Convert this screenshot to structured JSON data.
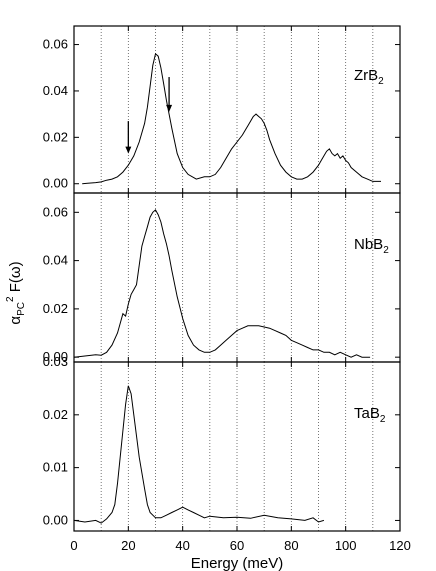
{
  "chart_data": {
    "type": "line",
    "xlabel": "Energy (meV)",
    "ylabel": {
      "base": "α",
      "sub": "PC",
      "sup": "2",
      "rest": " F(ω)"
    },
    "xlim": [
      0,
      120
    ],
    "x_ticks": [
      0,
      20,
      40,
      60,
      80,
      100,
      120
    ],
    "vertical_dotted_gridlines_x": [
      10,
      20,
      30,
      40,
      50,
      60,
      70,
      80,
      90,
      100,
      110
    ],
    "panels": [
      {
        "label": {
          "base": "ZrB",
          "sub": "2"
        },
        "ylim": [
          -0.004,
          0.068
        ],
        "y_ticks": [
          0.0,
          0.02,
          0.04,
          0.06
        ],
        "y_tick_labels": [
          "0.00",
          "0.02",
          "0.04",
          "0.06"
        ],
        "annotations": [
          {
            "type": "down-arrow",
            "x": 20,
            "y_tip": 0.013,
            "y_tail": 0.027
          },
          {
            "type": "down-arrow",
            "x": 35,
            "y_tip": 0.031,
            "y_tail": 0.046
          }
        ],
        "series": [
          {
            "x": [
              3,
              5,
              8,
              10,
              12,
              14,
              16,
              18,
              20,
              22,
              24,
              26,
              27,
              28,
              29,
              30,
              31,
              32,
              33,
              34,
              36,
              38,
              40,
              42,
              45,
              48,
              50,
              52,
              54,
              56,
              58,
              60,
              62,
              64,
              65,
              66,
              67,
              68,
              69,
              70,
              71,
              72,
              74,
              76,
              78,
              80,
              82,
              84,
              86,
              88,
              90,
              91,
              92,
              93,
              94,
              95,
              96,
              97,
              98,
              99,
              100,
              101,
              102,
              104,
              106,
              108,
              110,
              113
            ],
            "y": [
              0.0,
              0.0002,
              0.0005,
              0.0008,
              0.0015,
              0.002,
              0.003,
              0.005,
              0.008,
              0.012,
              0.018,
              0.026,
              0.033,
              0.042,
              0.051,
              0.056,
              0.055,
              0.05,
              0.043,
              0.036,
              0.024,
              0.013,
              0.007,
              0.004,
              0.002,
              0.003,
              0.003,
              0.004,
              0.007,
              0.011,
              0.015,
              0.018,
              0.021,
              0.025,
              0.027,
              0.029,
              0.03,
              0.029,
              0.028,
              0.026,
              0.023,
              0.019,
              0.013,
              0.008,
              0.005,
              0.003,
              0.002,
              0.002,
              0.003,
              0.005,
              0.008,
              0.01,
              0.012,
              0.014,
              0.015,
              0.013,
              0.012,
              0.013,
              0.011,
              0.012,
              0.01,
              0.009,
              0.007,
              0.005,
              0.003,
              0.002,
              0.001,
              0.001
            ]
          }
        ]
      },
      {
        "label": {
          "base": "NbB",
          "sub": "2"
        },
        "ylim": [
          -0.002,
          0.068
        ],
        "y_ticks": [
          0.0,
          0.02,
          0.04,
          0.06
        ],
        "y_tick_labels": [
          "0.00",
          "0.02",
          "0.04",
          "0.06"
        ],
        "series": [
          {
            "x": [
              0,
              4,
              8,
              10,
              12,
              14,
              16,
              17,
              18,
              19,
              20,
              21,
              22,
              23,
              24,
              25,
              26,
              27,
              28,
              29,
              30,
              31,
              32,
              33,
              34,
              35,
              36,
              38,
              40,
              42,
              44,
              46,
              48,
              50,
              52,
              54,
              56,
              58,
              60,
              62,
              64,
              66,
              68,
              70,
              72,
              74,
              76,
              78,
              80,
              82,
              84,
              86,
              88,
              90,
              92,
              94,
              96,
              98,
              100,
              102,
              104,
              106,
              108,
              109
            ],
            "y": [
              0.0,
              0.0005,
              0.001,
              0.0008,
              0.002,
              0.005,
              0.01,
              0.014,
              0.018,
              0.017,
              0.022,
              0.026,
              0.028,
              0.03,
              0.038,
              0.046,
              0.05,
              0.054,
              0.058,
              0.06,
              0.061,
              0.059,
              0.056,
              0.051,
              0.047,
              0.042,
              0.036,
              0.025,
              0.016,
              0.009,
              0.005,
              0.003,
              0.002,
              0.002,
              0.003,
              0.005,
              0.007,
              0.009,
              0.011,
              0.012,
              0.013,
              0.013,
              0.013,
              0.0125,
              0.012,
              0.011,
              0.01,
              0.009,
              0.007,
              0.006,
              0.005,
              0.004,
              0.003,
              0.003,
              0.002,
              0.002,
              0.001,
              0.002,
              0.001,
              0.0,
              0.001,
              0.0,
              0.0,
              0.0
            ]
          }
        ]
      },
      {
        "label": {
          "base": "TaB",
          "sub": "2"
        },
        "ylim": [
          -0.002,
          0.03
        ],
        "y_ticks": [
          0.0,
          0.01,
          0.02,
          0.03
        ],
        "y_tick_labels": [
          "0.00",
          "0.01",
          "0.02",
          "0.03"
        ],
        "series": [
          {
            "x": [
              0,
              4,
              8,
              10,
              12,
              14,
              15,
              16,
              17,
              18,
              19,
              20,
              21,
              22,
              23,
              24,
              25,
              26,
              27,
              28,
              30,
              32,
              34,
              36,
              38,
              40,
              42,
              44,
              46,
              48,
              50,
              55,
              60,
              65,
              70,
              75,
              80,
              85,
              88,
              90,
              92
            ],
            "y": [
              0.0,
              -0.0003,
              0.0,
              -0.0005,
              0.0003,
              0.0015,
              0.003,
              0.007,
              0.012,
              0.017,
              0.022,
              0.0255,
              0.024,
              0.02,
              0.016,
              0.012,
              0.009,
              0.006,
              0.003,
              0.0015,
              0.0005,
              0.0005,
              0.001,
              0.0015,
              0.002,
              0.0025,
              0.002,
              0.0015,
              0.001,
              0.0005,
              0.0008,
              0.0005,
              0.0006,
              0.0004,
              0.001,
              0.0005,
              0.0003,
              0.0,
              0.0005,
              -0.0003,
              0.0
            ]
          }
        ]
      }
    ]
  }
}
